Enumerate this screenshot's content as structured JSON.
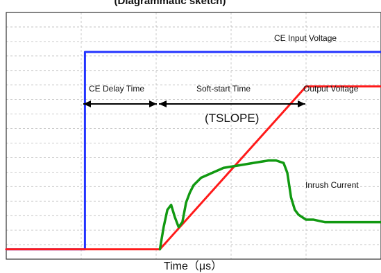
{
  "chart_data": {
    "type": "line",
    "title": "(Diagrammatic sketch)",
    "xlabel": "Time（μs）",
    "ylabel": "",
    "grid": true,
    "annotations": {
      "ce_input_voltage": "CE Input Voltage",
      "ce_delay_time": "CE Delay Time",
      "soft_start_time": "Soft-start Time",
      "tslope": "(TSLOPE)",
      "output_voltage": "Output Voltage",
      "inrush_current": "Inrush Current"
    },
    "xlim": [
      0,
      100
    ],
    "ylim": [
      0,
      100
    ],
    "series": [
      {
        "name": "CE Input Voltage",
        "color": "#2233ff",
        "x": [
          0,
          21,
          21,
          100
        ],
        "y": [
          4,
          4,
          84,
          84
        ]
      },
      {
        "name": "Output Voltage",
        "color": "#ff1a1a",
        "x": [
          0,
          41,
          80,
          100
        ],
        "y": [
          4,
          4,
          70,
          70
        ]
      },
      {
        "name": "Inrush Current",
        "color": "#119911",
        "x": [
          41,
          42,
          43,
          44,
          45,
          46,
          47,
          48,
          49,
          50,
          52,
          55,
          58,
          62,
          66,
          70,
          72,
          74,
          75,
          76,
          77,
          78,
          79,
          80,
          82,
          85,
          90,
          95,
          100
        ],
        "y": [
          4,
          13,
          20,
          22,
          17,
          13,
          15,
          23,
          27,
          30,
          33,
          35,
          37,
          38,
          39,
          40,
          40,
          39,
          35,
          25,
          20,
          18,
          17,
          16,
          16,
          15,
          15,
          15,
          15
        ]
      }
    ]
  }
}
